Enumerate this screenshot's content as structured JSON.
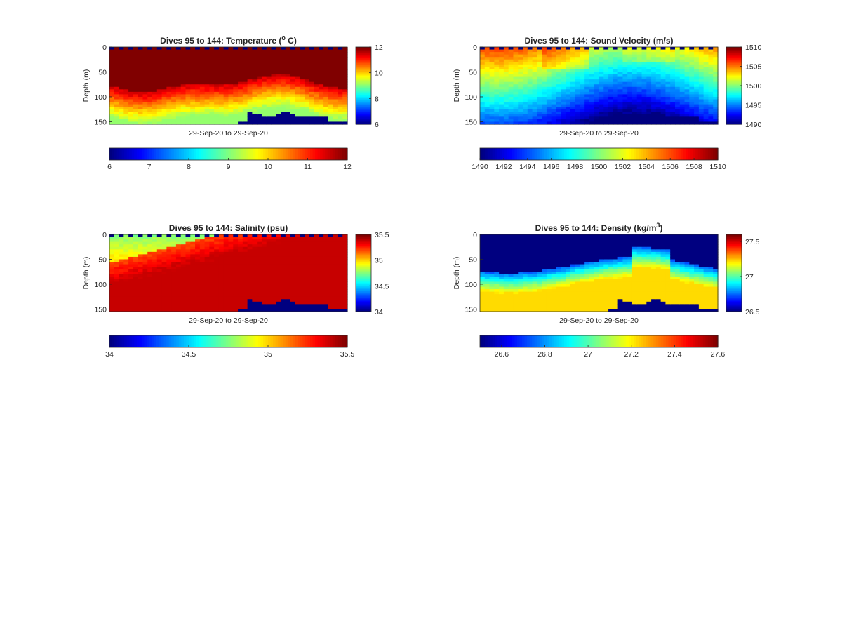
{
  "chart_data": [
    {
      "type": "heatmap",
      "title": {
        "main": "Dives 95 to 144: Temperature (",
        "sup": "o",
        "tail": " C)"
      },
      "xlabel": "29-Sep-20 to 29-Sep-20",
      "ylabel": "Depth (m)",
      "yticks": [
        "0",
        "50",
        "100",
        "150"
      ],
      "ylim": [
        0,
        155
      ],
      "x_dives": [
        95,
        144
      ],
      "clim": [
        6,
        12
      ],
      "colorbar_right_ticks": [
        "6",
        "8",
        "10",
        "12"
      ],
      "colorbar_right_values": [
        6,
        8,
        10,
        12
      ],
      "colorbar_bottom_ticks": [
        "6",
        "7",
        "8",
        "9",
        "10",
        "11",
        "12"
      ],
      "colorbar_bottom_values": [
        6,
        7,
        8,
        9,
        10,
        11,
        12
      ],
      "colormap": "jet",
      "field": "temperature"
    },
    {
      "type": "heatmap",
      "title": {
        "main": "Dives 95 to 144: Sound Velocity (m/s)",
        "sup": "",
        "tail": ""
      },
      "xlabel": "29-Sep-20 to 29-Sep-20",
      "ylabel": "Depth (m)",
      "yticks": [
        "0",
        "50",
        "100",
        "150"
      ],
      "ylim": [
        0,
        155
      ],
      "x_dives": [
        95,
        144
      ],
      "clim": [
        1490,
        1510
      ],
      "colorbar_right_ticks": [
        "1490",
        "1495",
        "1500",
        "1505",
        "1510"
      ],
      "colorbar_right_values": [
        1490,
        1495,
        1500,
        1505,
        1510
      ],
      "colorbar_bottom_ticks": [
        "1490",
        "1492",
        "1494",
        "1496",
        "1498",
        "1500",
        "1502",
        "1504",
        "1506",
        "1508",
        "1510"
      ],
      "colorbar_bottom_values": [
        1490,
        1492,
        1494,
        1496,
        1498,
        1500,
        1502,
        1504,
        1506,
        1508,
        1510
      ],
      "colormap": "jet",
      "field": "sound_velocity"
    },
    {
      "type": "heatmap",
      "title": {
        "main": "Dives 95 to 144: Salinity (psu)",
        "sup": "",
        "tail": ""
      },
      "xlabel": "29-Sep-20 to 29-Sep-20",
      "ylabel": "Depth (m)",
      "yticks": [
        "0",
        "50",
        "100",
        "150"
      ],
      "ylim": [
        0,
        155
      ],
      "x_dives": [
        95,
        144
      ],
      "clim": [
        34,
        35.5
      ],
      "colorbar_right_ticks": [
        "34",
        "34.5",
        "35",
        "35.5"
      ],
      "colorbar_right_values": [
        34,
        34.5,
        35,
        35.5
      ],
      "colorbar_bottom_ticks": [
        "34",
        "34.5",
        "35",
        "35.5"
      ],
      "colorbar_bottom_values": [
        34,
        34.5,
        35,
        35.5
      ],
      "colormap": "jet",
      "field": "salinity"
    },
    {
      "type": "heatmap",
      "title": {
        "main": "Dives 95 to 144: Density (kg/m",
        "sup": "3",
        "tail": ")"
      },
      "xlabel": "29-Sep-20 to 29-Sep-20",
      "ylabel": "Depth (m)",
      "yticks": [
        "0",
        "50",
        "100",
        "150"
      ],
      "ylim": [
        0,
        155
      ],
      "x_dives": [
        95,
        144
      ],
      "clim": [
        26.5,
        27.6
      ],
      "colorbar_right_ticks": [
        "26.5",
        "27",
        "27.5"
      ],
      "colorbar_right_values": [
        26.5,
        27,
        27.5
      ],
      "colorbar_bottom_ticks": [
        "26.6",
        "26.8",
        "27",
        "27.2",
        "27.4",
        "27.6"
      ],
      "colorbar_bottom_values": [
        26.6,
        26.8,
        27,
        27.2,
        27.4,
        27.6
      ],
      "colormap": "jet",
      "field": "density"
    }
  ]
}
